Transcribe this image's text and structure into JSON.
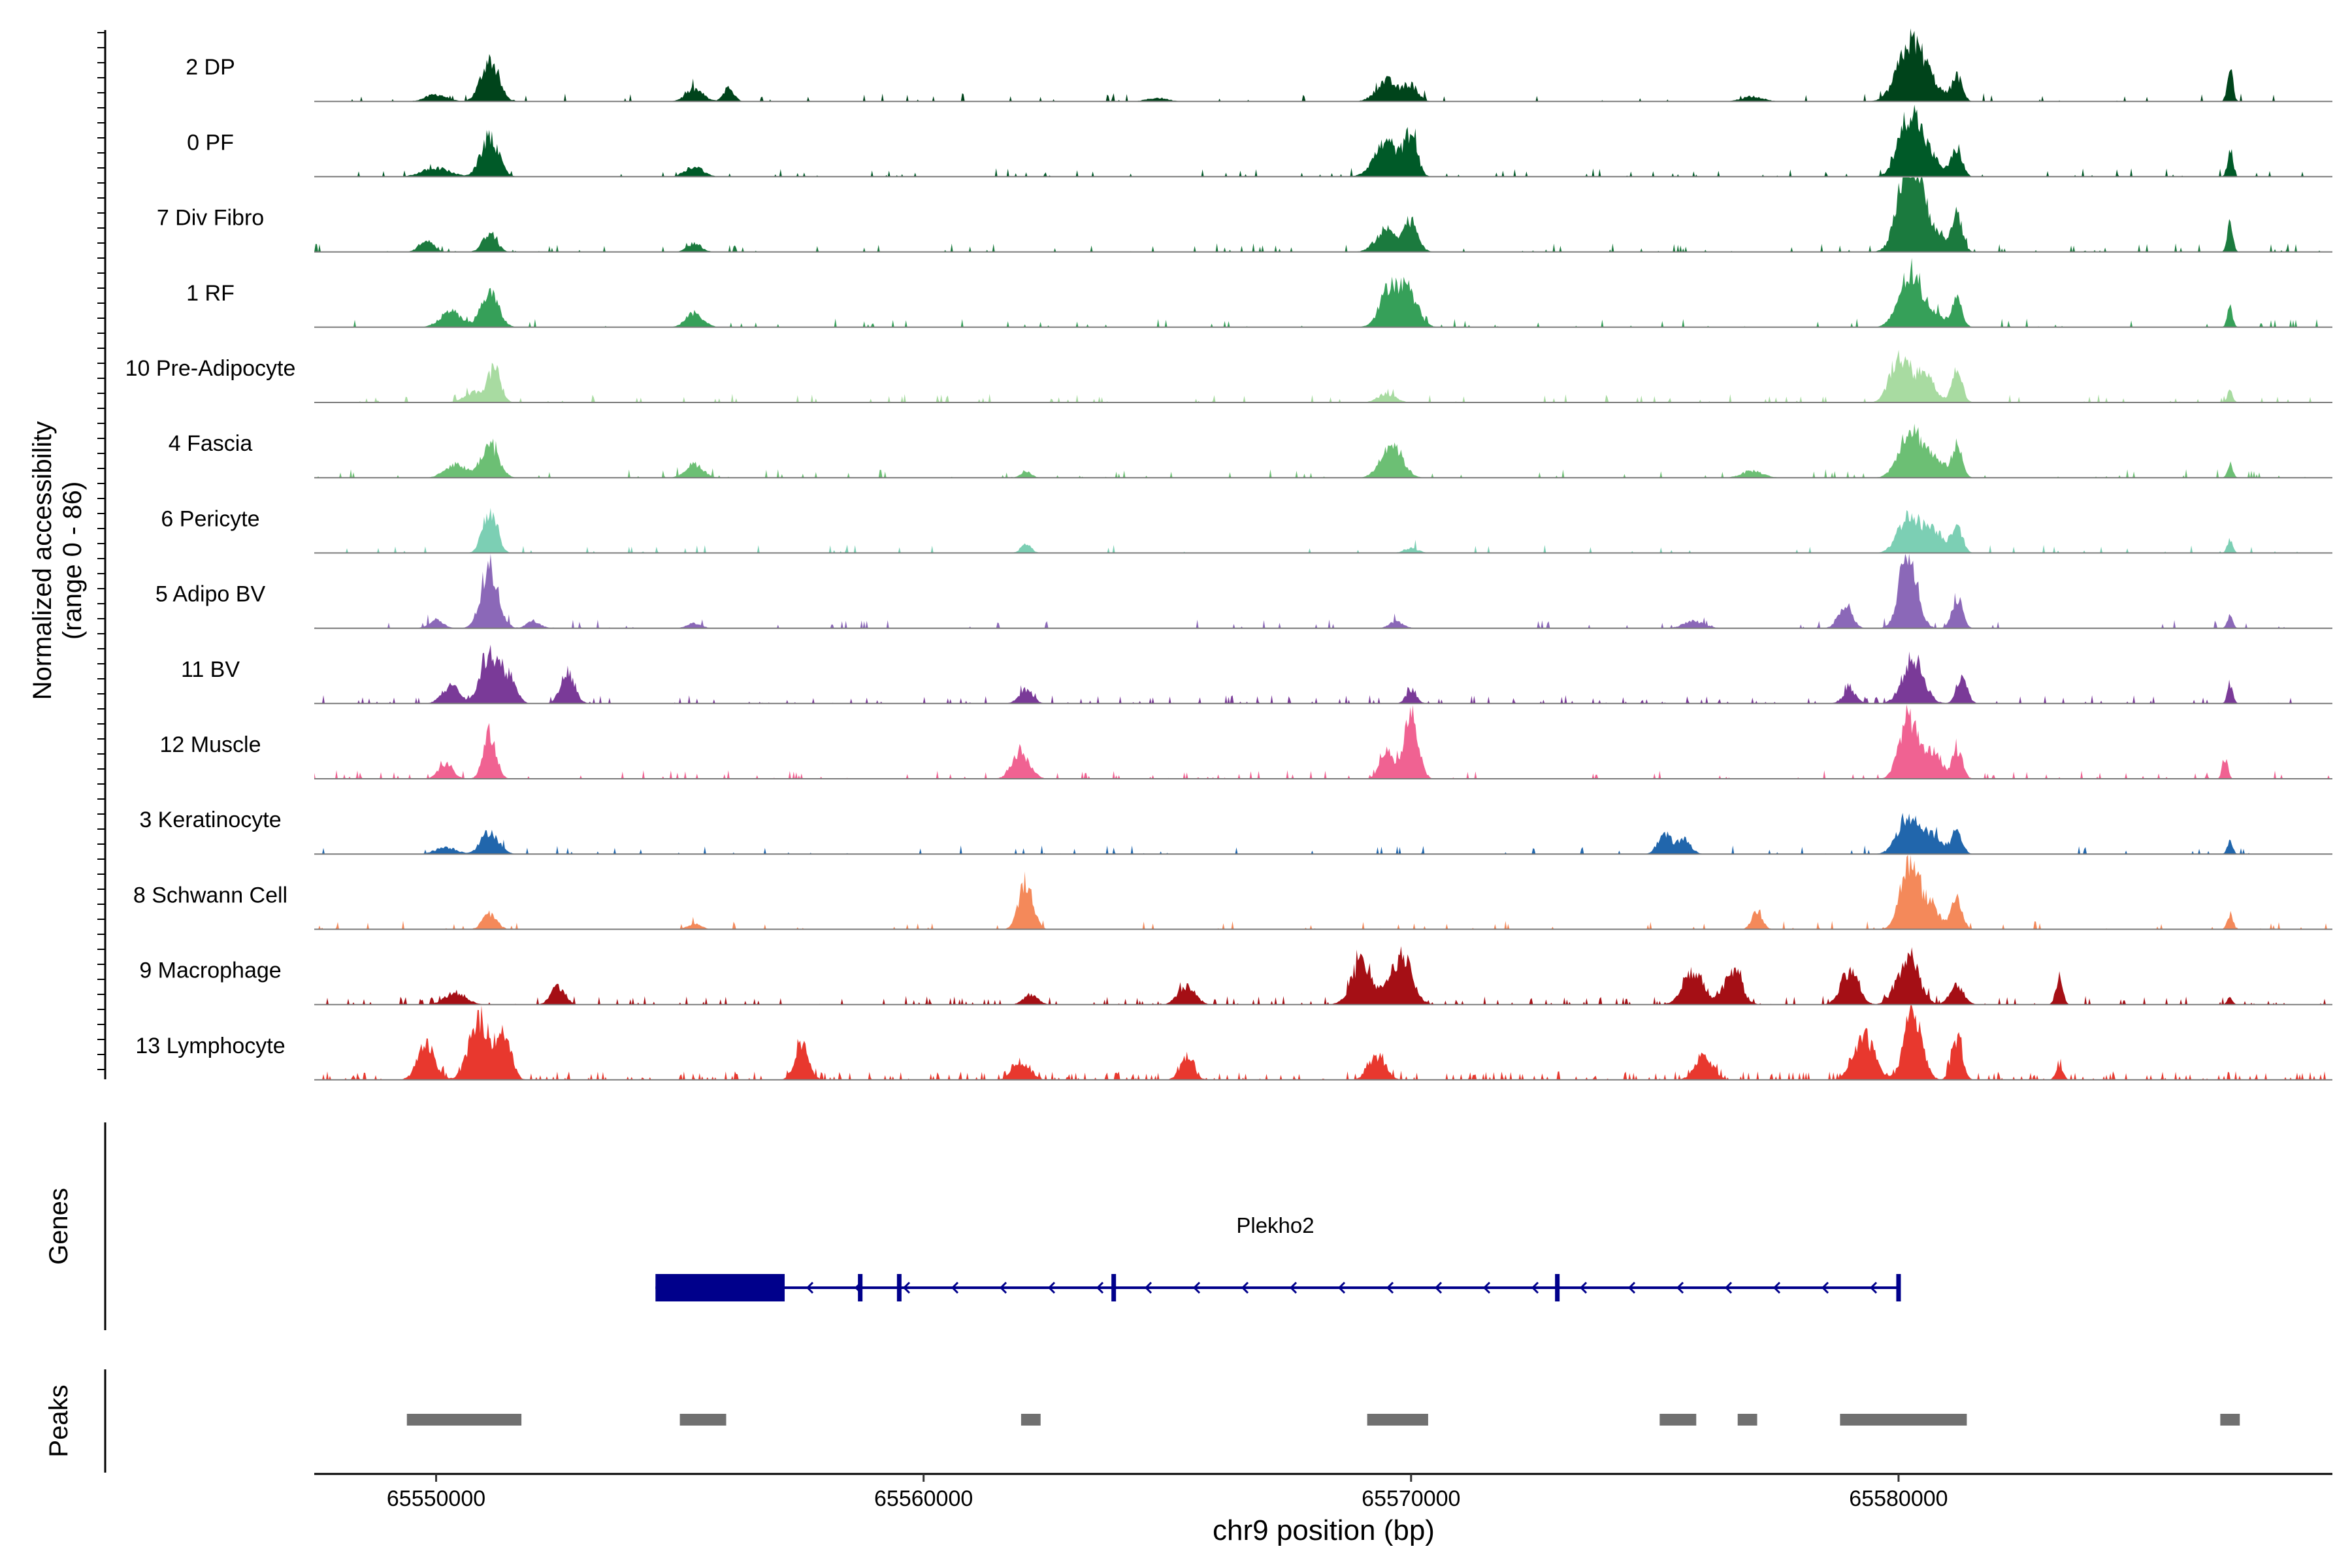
{
  "chart_data": {
    "type": "area",
    "title": "",
    "ylabel_line1": "Normalized accessibility",
    "ylabel_line2": "(range 0 - 86)",
    "xlabel": "chr9 position (bp)",
    "xlim": [
      65547500,
      65588900
    ],
    "ylim": [
      0,
      86
    ],
    "x_ticks": [
      65550000,
      65560000,
      65570000,
      65580000
    ],
    "x_tick_labels": [
      "65550000",
      "65560000",
      "65570000",
      "65580000"
    ],
    "tracks": [
      {
        "name": "2 DP",
        "color": "#00441b",
        "noise": 0.05,
        "peaks": [
          [
            65550000,
            8,
            300
          ],
          [
            65551100,
            48,
            250
          ],
          [
            65555300,
            14,
            250
          ],
          [
            65556000,
            16,
            150
          ],
          [
            65564800,
            4,
            300
          ],
          [
            65569500,
            24,
            300
          ],
          [
            65570000,
            18,
            200
          ],
          [
            65577000,
            6,
            300
          ],
          [
            65580200,
            50,
            350
          ],
          [
            65580500,
            30,
            400
          ],
          [
            65581200,
            28,
            150
          ],
          [
            65586800,
            42,
            80
          ]
        ]
      },
      {
        "name": "0 PF",
        "color": "#005a28",
        "noise": 0.05,
        "peaks": [
          [
            65550000,
            10,
            400
          ],
          [
            65551100,
            46,
            250
          ],
          [
            65555300,
            12,
            250
          ],
          [
            65569500,
            40,
            350
          ],
          [
            65570000,
            46,
            180
          ],
          [
            65580200,
            56,
            300
          ],
          [
            65580500,
            30,
            400
          ],
          [
            65581200,
            32,
            150
          ],
          [
            65586800,
            28,
            80
          ]
        ]
      },
      {
        "name": "7 Div Fibro",
        "color": "#1b7a3e",
        "noise": 0.06,
        "peaks": [
          [
            65549800,
            14,
            200
          ],
          [
            65551100,
            22,
            200
          ],
          [
            65555300,
            10,
            200
          ],
          [
            65569500,
            26,
            300
          ],
          [
            65570000,
            36,
            200
          ],
          [
            65580200,
            86,
            300
          ],
          [
            65580500,
            40,
            400
          ],
          [
            65581200,
            44,
            150
          ],
          [
            65586800,
            34,
            80
          ]
        ]
      },
      {
        "name": "1 RF",
        "color": "#36a059",
        "noise": 0.05,
        "peaks": [
          [
            65550300,
            18,
            300
          ],
          [
            65551100,
            40,
            250
          ],
          [
            65555300,
            16,
            250
          ],
          [
            65569600,
            50,
            300
          ],
          [
            65570000,
            30,
            250
          ],
          [
            65580200,
            52,
            300
          ],
          [
            65580600,
            20,
            400
          ],
          [
            65581200,
            30,
            150
          ],
          [
            65586800,
            22,
            80
          ]
        ]
      },
      {
        "name": "10 Pre-Adipocyte",
        "color": "#a8dba1",
        "noise": 0.08,
        "peaks": [
          [
            65550800,
            12,
            300
          ],
          [
            65551200,
            38,
            180
          ],
          [
            65569500,
            10,
            250
          ],
          [
            65580000,
            52,
            250
          ],
          [
            65580500,
            34,
            300
          ],
          [
            65581200,
            36,
            150
          ],
          [
            65586800,
            14,
            80
          ]
        ]
      },
      {
        "name": "4 Fascia",
        "color": "#6cbf74",
        "noise": 0.05,
        "peaks": [
          [
            65550400,
            16,
            300
          ],
          [
            65551100,
            38,
            250
          ],
          [
            65555300,
            16,
            250
          ],
          [
            65562100,
            8,
            150
          ],
          [
            65569600,
            40,
            300
          ],
          [
            65577000,
            8,
            300
          ],
          [
            65580200,
            46,
            300
          ],
          [
            65580600,
            26,
            400
          ],
          [
            65581200,
            34,
            150
          ],
          [
            65586800,
            16,
            80
          ]
        ]
      },
      {
        "name": "6 Pericyte",
        "color": "#7ccfb4",
        "noise": 0.04,
        "peaks": [
          [
            65551100,
            50,
            200
          ],
          [
            65562100,
            10,
            150
          ],
          [
            65570000,
            6,
            200
          ],
          [
            65580200,
            42,
            300
          ],
          [
            65580700,
            28,
            300
          ],
          [
            65581200,
            34,
            150
          ],
          [
            65586800,
            16,
            80
          ]
        ]
      },
      {
        "name": "5 Adipo BV",
        "color": "#8b68b8",
        "noise": 0.05,
        "peaks": [
          [
            65550000,
            10,
            200
          ],
          [
            65551100,
            66,
            250
          ],
          [
            65552000,
            8,
            200
          ],
          [
            65555300,
            6,
            200
          ],
          [
            65569700,
            8,
            200
          ],
          [
            65575800,
            8,
            300
          ],
          [
            65578900,
            26,
            200
          ],
          [
            65580200,
            90,
            250
          ],
          [
            65581200,
            36,
            150
          ],
          [
            65586800,
            14,
            80
          ]
        ]
      },
      {
        "name": "11 BV",
        "color": "#7a3a98",
        "noise": 0.12,
        "peaks": [
          [
            65550300,
            20,
            250
          ],
          [
            65551100,
            60,
            250
          ],
          [
            65551500,
            30,
            200
          ],
          [
            65552700,
            36,
            200
          ],
          [
            65562100,
            16,
            200
          ],
          [
            65570000,
            16,
            150
          ],
          [
            65579000,
            14,
            200
          ],
          [
            65580300,
            52,
            300
          ],
          [
            65581300,
            34,
            150
          ],
          [
            65586800,
            22,
            80
          ]
        ]
      },
      {
        "name": "12 Muscle",
        "color": "#f06292",
        "noise": 0.08,
        "peaks": [
          [
            65550200,
            18,
            200
          ],
          [
            65551100,
            52,
            180
          ],
          [
            65562000,
            30,
            250
          ],
          [
            65569500,
            30,
            200
          ],
          [
            65570000,
            72,
            200
          ],
          [
            65580200,
            74,
            250
          ],
          [
            65580700,
            30,
            250
          ],
          [
            65581200,
            34,
            150
          ],
          [
            65586700,
            24,
            80
          ]
        ]
      },
      {
        "name": "3 Keratinocyte",
        "color": "#2166ac",
        "noise": 0.04,
        "peaks": [
          [
            65550200,
            8,
            300
          ],
          [
            65551100,
            26,
            250
          ],
          [
            65575200,
            22,
            200
          ],
          [
            65575600,
            16,
            200
          ],
          [
            65580200,
            44,
            300
          ],
          [
            65580700,
            20,
            300
          ],
          [
            65581200,
            26,
            150
          ],
          [
            65586800,
            14,
            80
          ]
        ]
      },
      {
        "name": "8 Schwann Cell",
        "color": "#f4895a",
        "noise": 0.05,
        "peaks": [
          [
            65551100,
            18,
            200
          ],
          [
            65555300,
            6,
            200
          ],
          [
            65562100,
            56,
            200
          ],
          [
            65577100,
            22,
            150
          ],
          [
            65580200,
            70,
            250
          ],
          [
            65580600,
            30,
            300
          ],
          [
            65581200,
            36,
            150
          ],
          [
            65586800,
            18,
            80
          ]
        ]
      },
      {
        "name": "9 Macrophage",
        "color": "#a50f15",
        "noise": 0.15,
        "peaks": [
          [
            65550400,
            14,
            300
          ],
          [
            65552500,
            22,
            200
          ],
          [
            65562200,
            12,
            200
          ],
          [
            65565400,
            20,
            250
          ],
          [
            65569000,
            50,
            300
          ],
          [
            65569800,
            56,
            300
          ],
          [
            65575800,
            36,
            300
          ],
          [
            65576600,
            40,
            250
          ],
          [
            65579000,
            38,
            250
          ],
          [
            65580200,
            56,
            300
          ],
          [
            65581200,
            22,
            200
          ],
          [
            65583300,
            34,
            100
          ],
          [
            65586800,
            8,
            80
          ]
        ]
      },
      {
        "name": "13 Lymphocyte",
        "color": "#e8382e",
        "noise": 0.2,
        "peaks": [
          [
            65549800,
            40,
            250
          ],
          [
            65550900,
            70,
            300
          ],
          [
            65551400,
            52,
            200
          ],
          [
            65557500,
            40,
            200
          ],
          [
            65562000,
            18,
            250
          ],
          [
            65565400,
            24,
            200
          ],
          [
            65569300,
            26,
            250
          ],
          [
            65576000,
            28,
            250
          ],
          [
            65579300,
            50,
            300
          ],
          [
            65580300,
            80,
            250
          ],
          [
            65581200,
            50,
            150
          ],
          [
            65583300,
            18,
            100
          ]
        ]
      }
    ],
    "genes_label": "Genes",
    "gene_name": "Plekho2",
    "gene": {
      "start": 65554500,
      "end": 65580000,
      "strand": "-",
      "thick_block": [
        65554500,
        65557150
      ],
      "exons": [
        65558700,
        65559500,
        65563900,
        65573000,
        65580000
      ],
      "color": "#00008b"
    },
    "peaks_label": "Peaks",
    "peak_regions": [
      [
        65549400,
        65551750
      ],
      [
        65555000,
        65555950
      ],
      [
        65562000,
        65562400
      ],
      [
        65569100,
        65570350
      ],
      [
        65575100,
        65575850
      ],
      [
        65576700,
        65577100
      ],
      [
        65578800,
        65581400
      ],
      [
        65586600,
        65587000
      ]
    ],
    "peak_color": "#707070"
  }
}
